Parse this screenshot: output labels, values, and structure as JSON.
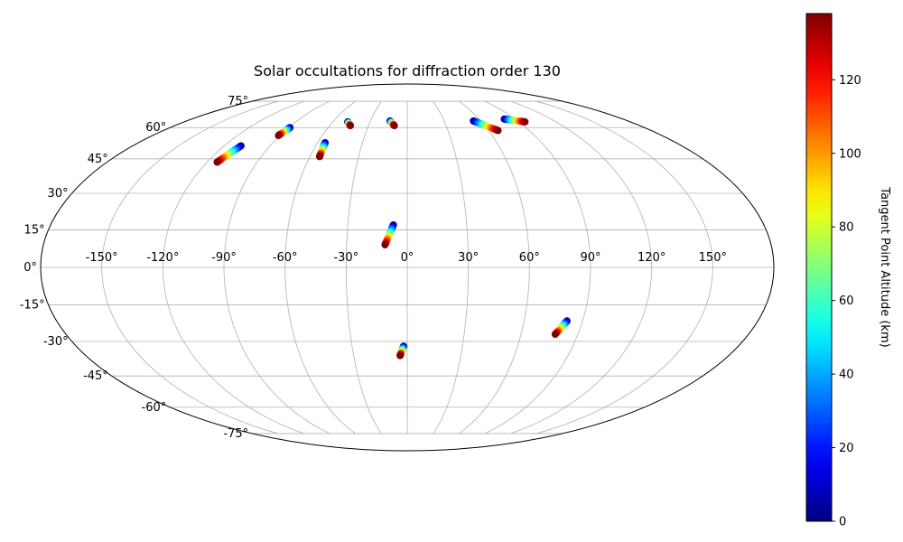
{
  "chart_data": {
    "type": "scatter",
    "projection": "mollweide",
    "title": "Solar occultations for diffraction order 130",
    "x_ticks": [
      -150,
      -120,
      -90,
      -60,
      -30,
      0,
      30,
      60,
      90,
      120,
      150
    ],
    "y_ticks": [
      -75,
      -60,
      -45,
      -30,
      -15,
      0,
      15,
      30,
      45,
      60,
      75
    ],
    "lon_labels": [
      "-150°",
      "-120°",
      "-90°",
      "-60°",
      "-30°",
      "0°",
      "30°",
      "60°",
      "90°",
      "120°",
      "150°"
    ],
    "lat_labels": [
      "-75°",
      "-60°",
      "-45°",
      "-30°",
      "-15°",
      "0°",
      "15°",
      "30°",
      "45°",
      "60°",
      "75°"
    ],
    "grid": true,
    "colorbar": {
      "label": "Tangent Point Altitude (km)",
      "range": [
        0,
        138
      ],
      "ticks": [
        0,
        20,
        40,
        60,
        80,
        100,
        120
      ],
      "tick_labels": [
        "0",
        "20",
        "40",
        "60",
        "80",
        "100",
        "120"
      ],
      "colormap": "jet"
    },
    "series": [
      {
        "start": {
          "lon": -109,
          "lat": 51,
          "alt": 0
        },
        "end": {
          "lon": -114,
          "lat": 43.5,
          "alt": 138
        }
      },
      {
        "start": {
          "lon": -89,
          "lat": 60,
          "alt": 0
        },
        "end": {
          "lon": -91,
          "lat": 56,
          "alt": 138
        }
      },
      {
        "start": {
          "lon": -55,
          "lat": 52.5,
          "alt": 0
        },
        "end": {
          "lon": -54,
          "lat": 46,
          "alt": 138
        }
      },
      {
        "start": {
          "lon": -48,
          "lat": 63,
          "alt": 0
        },
        "end": {
          "lon": -44,
          "lat": 61,
          "alt": 138
        }
      },
      {
        "start": {
          "lon": -14,
          "lat": 63.5,
          "alt": 0
        },
        "end": {
          "lon": -10,
          "lat": 61,
          "alt": 138
        }
      },
      {
        "start": {
          "lon": -7,
          "lat": 17,
          "alt": 0
        },
        "end": {
          "lon": -11,
          "lat": 9,
          "alt": 138
        }
      },
      {
        "start": {
          "lon": -2,
          "lat": -32,
          "alt": 0
        },
        "end": {
          "lon": -4,
          "lat": -36,
          "alt": 138
        }
      },
      {
        "start": {
          "lon": 54,
          "lat": 63.5,
          "alt": 0
        },
        "end": {
          "lon": 67,
          "lat": 58.5,
          "alt": 138
        }
      },
      {
        "start": {
          "lon": 81,
          "lat": 64.5,
          "alt": 0
        },
        "end": {
          "lon": 95,
          "lat": 63,
          "alt": 138
        }
      },
      {
        "start": {
          "lon": 82,
          "lat": -21.5,
          "alt": 0
        },
        "end": {
          "lon": 78,
          "lat": -27,
          "alt": 138
        }
      }
    ]
  }
}
